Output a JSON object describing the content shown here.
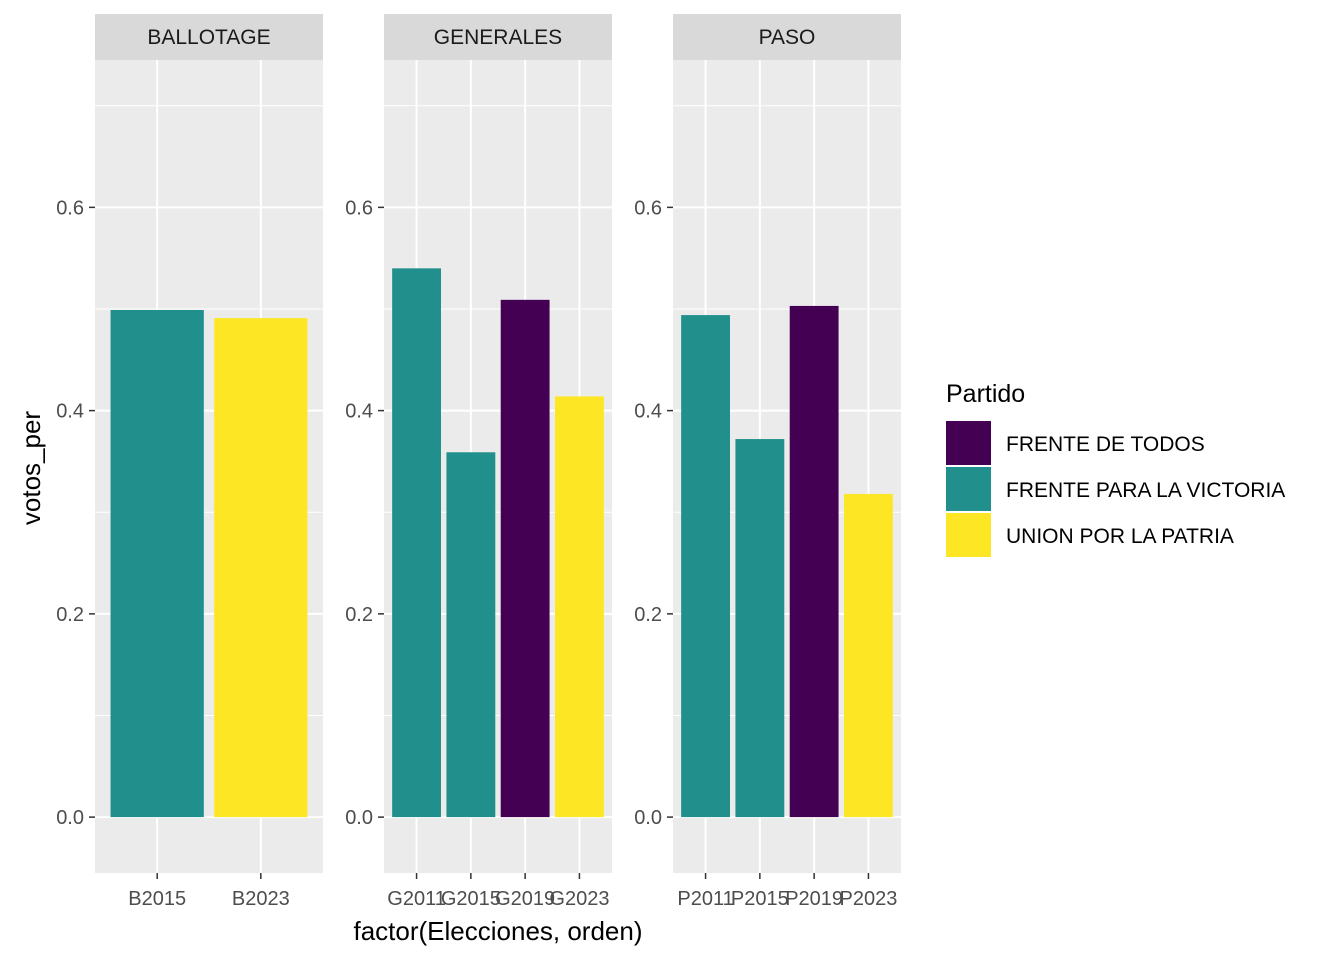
{
  "chart_data": {
    "type": "bar",
    "xlabel": "factor(Elecciones, orden)",
    "ylabel": "votos_per",
    "ylim": [
      -0.055,
      0.745
    ],
    "y_ticks": [
      0.0,
      0.2,
      0.4,
      0.6
    ],
    "y_tick_labels": [
      "0.0",
      "0.2",
      "0.4",
      "0.6"
    ],
    "grid": true,
    "legend": {
      "title": "Partido",
      "position": "right",
      "entries": [
        {
          "label": "FRENTE DE TODOS",
          "color": "#440154"
        },
        {
          "label": "FRENTE PARA LA VICTORIA",
          "color": "#21908C"
        },
        {
          "label": "UNION POR LA PATRIA",
          "color": "#FDE725"
        }
      ]
    },
    "facets": [
      {
        "label": "BALLOTAGE",
        "categories": [
          "B2015",
          "B2023"
        ],
        "values": [
          0.499,
          0.491
        ],
        "parties": [
          "FRENTE PARA LA VICTORIA",
          "UNION POR LA PATRIA"
        ]
      },
      {
        "label": "GENERALES",
        "categories": [
          "G2011",
          "G2015",
          "G2019",
          "G2023"
        ],
        "values": [
          0.54,
          0.359,
          0.509,
          0.414
        ],
        "parties": [
          "FRENTE PARA LA VICTORIA",
          "FRENTE PARA LA VICTORIA",
          "FRENTE DE TODOS",
          "UNION POR LA PATRIA"
        ]
      },
      {
        "label": "PASO",
        "categories": [
          "P2011",
          "P2015",
          "P2019",
          "P2023"
        ],
        "values": [
          0.494,
          0.372,
          0.503,
          0.318
        ],
        "parties": [
          "FRENTE PARA LA VICTORIA",
          "FRENTE PARA LA VICTORIA",
          "FRENTE DE TODOS",
          "UNION POR LA PATRIA"
        ]
      }
    ]
  }
}
